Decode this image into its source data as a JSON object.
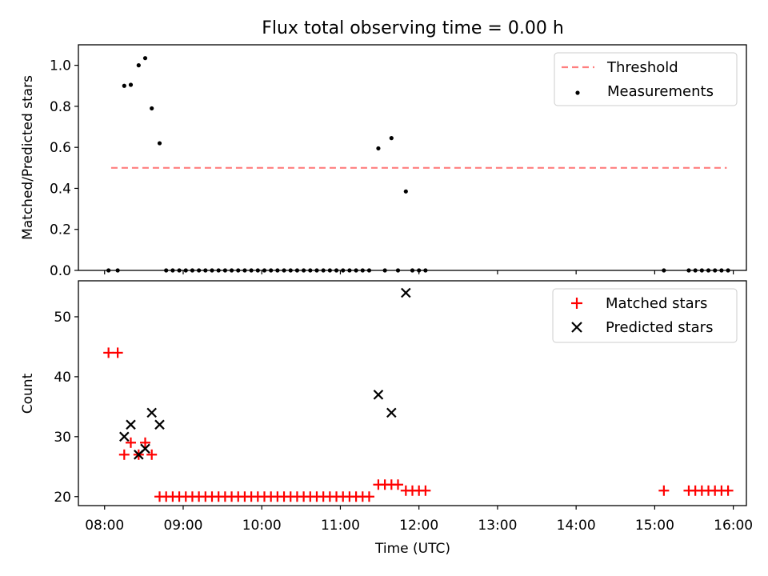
{
  "chart_data": [
    {
      "type": "scatter",
      "title": "Flux total observing time = 0.00 h",
      "xlabel": "",
      "ylabel": "Matched/Predicted stars",
      "xlim": [
        "07:40",
        "16:10"
      ],
      "ylim": [
        0.0,
        1.1
      ],
      "yticks": [
        0.0,
        0.2,
        0.4,
        0.6,
        0.8,
        1.0
      ],
      "ytick_labels": [
        "0.0",
        "0.2",
        "0.4",
        "0.6",
        "0.8",
        "1.0"
      ],
      "legend_position": "top-right",
      "series": [
        {
          "name": "Threshold",
          "style": "dashed-line",
          "color": "#ff7f7f",
          "x": [
            "08:05",
            "15:55"
          ],
          "y": [
            0.5,
            0.5
          ]
        },
        {
          "name": "Measurements",
          "style": "dot",
          "color": "#000000",
          "points": [
            [
              "08:03",
              0.0
            ],
            [
              "08:10",
              0.0
            ],
            [
              "08:15",
              0.9
            ],
            [
              "08:20",
              0.905
            ],
            [
              "08:26",
              1.0
            ],
            [
              "08:31",
              1.035
            ],
            [
              "08:36",
              0.79
            ],
            [
              "08:42",
              0.62
            ],
            [
              "08:47",
              0.0
            ],
            [
              "08:52",
              0.0
            ],
            [
              "08:57",
              0.0
            ],
            [
              "09:02",
              0.0
            ],
            [
              "09:07",
              0.0
            ],
            [
              "09:12",
              0.0
            ],
            [
              "09:17",
              0.0
            ],
            [
              "09:22",
              0.0
            ],
            [
              "09:27",
              0.0
            ],
            [
              "09:32",
              0.0
            ],
            [
              "09:37",
              0.0
            ],
            [
              "09:42",
              0.0
            ],
            [
              "09:47",
              0.0
            ],
            [
              "09:52",
              0.0
            ],
            [
              "09:57",
              0.0
            ],
            [
              "10:02",
              0.0
            ],
            [
              "10:07",
              0.0
            ],
            [
              "10:12",
              0.0
            ],
            [
              "10:17",
              0.0
            ],
            [
              "10:22",
              0.0
            ],
            [
              "10:27",
              0.0
            ],
            [
              "10:32",
              0.0
            ],
            [
              "10:37",
              0.0
            ],
            [
              "10:42",
              0.0
            ],
            [
              "10:47",
              0.0
            ],
            [
              "10:52",
              0.0
            ],
            [
              "10:57",
              0.0
            ],
            [
              "11:02",
              0.0
            ],
            [
              "11:07",
              0.0
            ],
            [
              "11:12",
              0.0
            ],
            [
              "11:17",
              0.0
            ],
            [
              "11:22",
              0.0
            ],
            [
              "11:29",
              0.595
            ],
            [
              "11:34",
              0.0
            ],
            [
              "11:39",
              0.645
            ],
            [
              "11:44",
              0.0
            ],
            [
              "11:50",
              0.385
            ],
            [
              "11:55",
              0.0
            ],
            [
              "12:00",
              0.0
            ],
            [
              "12:05",
              0.0
            ],
            [
              "15:07",
              0.0
            ],
            [
              "15:26",
              0.0
            ],
            [
              "15:31",
              0.0
            ],
            [
              "15:36",
              0.0
            ],
            [
              "15:41",
              0.0
            ],
            [
              "15:46",
              0.0
            ],
            [
              "15:51",
              0.0
            ],
            [
              "15:56",
              0.0
            ]
          ]
        }
      ]
    },
    {
      "type": "scatter",
      "title": "",
      "xlabel": "Time (UTC)",
      "ylabel": "Count",
      "xlim": [
        "07:40",
        "16:10"
      ],
      "ylim": [
        18.5,
        56
      ],
      "xticks": [
        "08:00",
        "09:00",
        "10:00",
        "11:00",
        "12:00",
        "13:00",
        "14:00",
        "15:00",
        "16:00"
      ],
      "xtick_labels": [
        "08:00",
        "09:00",
        "10:00",
        "11:00",
        "12:00",
        "13:00",
        "14:00",
        "15:00",
        "16:00"
      ],
      "yticks": [
        20,
        30,
        40,
        50
      ],
      "ytick_labels": [
        "20",
        "30",
        "40",
        "50"
      ],
      "legend_position": "top-right",
      "series": [
        {
          "name": "Matched stars",
          "marker": "+",
          "color": "#ff0000",
          "points": [
            [
              "08:03",
              44
            ],
            [
              "08:10",
              44
            ],
            [
              "08:15",
              27
            ],
            [
              "08:20",
              29
            ],
            [
              "08:26",
              27
            ],
            [
              "08:31",
              29
            ],
            [
              "08:36",
              27
            ],
            [
              "08:42",
              20
            ],
            [
              "08:47",
              20
            ],
            [
              "08:52",
              20
            ],
            [
              "08:57",
              20
            ],
            [
              "09:02",
              20
            ],
            [
              "09:07",
              20
            ],
            [
              "09:12",
              20
            ],
            [
              "09:17",
              20
            ],
            [
              "09:22",
              20
            ],
            [
              "09:27",
              20
            ],
            [
              "09:32",
              20
            ],
            [
              "09:37",
              20
            ],
            [
              "09:42",
              20
            ],
            [
              "09:47",
              20
            ],
            [
              "09:52",
              20
            ],
            [
              "09:57",
              20
            ],
            [
              "10:02",
              20
            ],
            [
              "10:07",
              20
            ],
            [
              "10:12",
              20
            ],
            [
              "10:17",
              20
            ],
            [
              "10:22",
              20
            ],
            [
              "10:27",
              20
            ],
            [
              "10:32",
              20
            ],
            [
              "10:37",
              20
            ],
            [
              "10:42",
              20
            ],
            [
              "10:47",
              20
            ],
            [
              "10:52",
              20
            ],
            [
              "10:57",
              20
            ],
            [
              "11:02",
              20
            ],
            [
              "11:07",
              20
            ],
            [
              "11:12",
              20
            ],
            [
              "11:17",
              20
            ],
            [
              "11:22",
              20
            ],
            [
              "11:29",
              22
            ],
            [
              "11:34",
              22
            ],
            [
              "11:39",
              22
            ],
            [
              "11:44",
              22
            ],
            [
              "11:50",
              21
            ],
            [
              "11:55",
              21
            ],
            [
              "12:00",
              21
            ],
            [
              "12:05",
              21
            ],
            [
              "15:07",
              21
            ],
            [
              "15:26",
              21
            ],
            [
              "15:31",
              21
            ],
            [
              "15:36",
              21
            ],
            [
              "15:41",
              21
            ],
            [
              "15:46",
              21
            ],
            [
              "15:51",
              21
            ],
            [
              "15:56",
              21
            ]
          ]
        },
        {
          "name": "Predicted stars",
          "marker": "x",
          "color": "#000000",
          "points": [
            [
              "08:15",
              30
            ],
            [
              "08:20",
              32
            ],
            [
              "08:26",
              27
            ],
            [
              "08:31",
              28
            ],
            [
              "08:36",
              34
            ],
            [
              "08:42",
              32
            ],
            [
              "11:29",
              37
            ],
            [
              "11:39",
              34
            ],
            [
              "11:50",
              54
            ]
          ]
        }
      ]
    }
  ]
}
